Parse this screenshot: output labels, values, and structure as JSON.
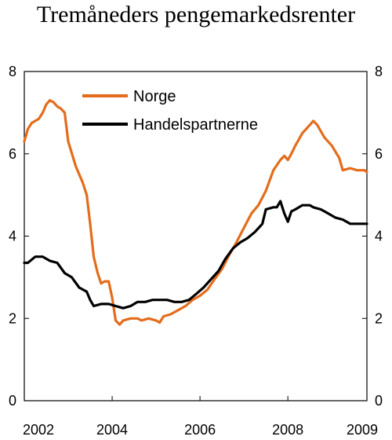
{
  "chart_data": {
    "type": "line",
    "title": "Tremåneders pengemarkedsrenter",
    "xlabel": "",
    "ylabel": "",
    "xlim": [
      2002.0,
      2009.8
    ],
    "ylim": [
      0,
      8
    ],
    "x_ticks": [
      {
        "value": 2002,
        "label": "2002"
      },
      {
        "value": 2004,
        "label": "2004"
      },
      {
        "value": 2006,
        "label": "2006"
      },
      {
        "value": 2008,
        "label": "2008"
      },
      {
        "value": 2009.8,
        "label": "2009"
      }
    ],
    "y_ticks_left": [
      0,
      2,
      4,
      6,
      8
    ],
    "y_ticks_right": [
      0,
      2,
      4,
      6,
      8
    ],
    "grid": false,
    "legend_position": "top-center",
    "series": [
      {
        "name": "Norge",
        "color": "#E46C1C",
        "points": [
          [
            2002.0,
            6.3
          ],
          [
            2002.08,
            6.6
          ],
          [
            2002.17,
            6.75
          ],
          [
            2002.33,
            6.85
          ],
          [
            2002.42,
            7.0
          ],
          [
            2002.5,
            7.2
          ],
          [
            2002.58,
            7.3
          ],
          [
            2002.67,
            7.25
          ],
          [
            2002.75,
            7.15
          ],
          [
            2002.83,
            7.1
          ],
          [
            2002.92,
            7.0
          ],
          [
            2003.0,
            6.3
          ],
          [
            2003.17,
            5.7
          ],
          [
            2003.33,
            5.3
          ],
          [
            2003.42,
            5.0
          ],
          [
            2003.5,
            4.3
          ],
          [
            2003.58,
            3.5
          ],
          [
            2003.67,
            3.1
          ],
          [
            2003.75,
            2.85
          ],
          [
            2003.83,
            2.9
          ],
          [
            2003.92,
            2.9
          ],
          [
            2004.0,
            2.5
          ],
          [
            2004.08,
            1.95
          ],
          [
            2004.17,
            1.85
          ],
          [
            2004.25,
            1.95
          ],
          [
            2004.42,
            2.0
          ],
          [
            2004.58,
            2.0
          ],
          [
            2004.67,
            1.95
          ],
          [
            2004.83,
            2.0
          ],
          [
            2005.0,
            1.95
          ],
          [
            2005.08,
            1.9
          ],
          [
            2005.17,
            2.05
          ],
          [
            2005.33,
            2.1
          ],
          [
            2005.5,
            2.2
          ],
          [
            2005.67,
            2.3
          ],
          [
            2005.83,
            2.45
          ],
          [
            2006.0,
            2.55
          ],
          [
            2006.17,
            2.7
          ],
          [
            2006.33,
            2.95
          ],
          [
            2006.5,
            3.2
          ],
          [
            2006.67,
            3.55
          ],
          [
            2006.83,
            3.85
          ],
          [
            2007.0,
            4.2
          ],
          [
            2007.17,
            4.55
          ],
          [
            2007.33,
            4.75
          ],
          [
            2007.5,
            5.1
          ],
          [
            2007.67,
            5.6
          ],
          [
            2007.83,
            5.85
          ],
          [
            2007.92,
            5.95
          ],
          [
            2008.0,
            5.85
          ],
          [
            2008.08,
            6.0
          ],
          [
            2008.17,
            6.2
          ],
          [
            2008.33,
            6.5
          ],
          [
            2008.5,
            6.7
          ],
          [
            2008.58,
            6.8
          ],
          [
            2008.67,
            6.7
          ],
          [
            2008.83,
            6.4
          ],
          [
            2009.0,
            6.2
          ],
          [
            2009.17,
            5.9
          ],
          [
            2009.25,
            5.6
          ],
          [
            2009.42,
            5.65
          ],
          [
            2009.58,
            5.6
          ],
          [
            2009.75,
            5.6
          ],
          [
            2009.8,
            5.55
          ]
        ]
      },
      {
        "name": "Handelspartnerne",
        "color": "#000000",
        "points": [
          [
            2002.0,
            3.35
          ],
          [
            2002.08,
            3.35
          ],
          [
            2002.25,
            3.5
          ],
          [
            2002.42,
            3.5
          ],
          [
            2002.58,
            3.4
          ],
          [
            2002.75,
            3.35
          ],
          [
            2002.92,
            3.1
          ],
          [
            2003.08,
            3.0
          ],
          [
            2003.25,
            2.75
          ],
          [
            2003.42,
            2.65
          ],
          [
            2003.5,
            2.45
          ],
          [
            2003.58,
            2.3
          ],
          [
            2003.75,
            2.35
          ],
          [
            2003.92,
            2.35
          ],
          [
            2004.08,
            2.3
          ],
          [
            2004.25,
            2.25
          ],
          [
            2004.42,
            2.3
          ],
          [
            2004.58,
            2.4
          ],
          [
            2004.75,
            2.4
          ],
          [
            2004.92,
            2.45
          ],
          [
            2005.08,
            2.45
          ],
          [
            2005.25,
            2.45
          ],
          [
            2005.42,
            2.4
          ],
          [
            2005.58,
            2.4
          ],
          [
            2005.75,
            2.45
          ],
          [
            2005.92,
            2.6
          ],
          [
            2006.08,
            2.75
          ],
          [
            2006.25,
            2.95
          ],
          [
            2006.42,
            3.15
          ],
          [
            2006.58,
            3.45
          ],
          [
            2006.75,
            3.7
          ],
          [
            2006.92,
            3.85
          ],
          [
            2007.08,
            3.95
          ],
          [
            2007.25,
            4.1
          ],
          [
            2007.42,
            4.3
          ],
          [
            2007.5,
            4.65
          ],
          [
            2007.67,
            4.7
          ],
          [
            2007.75,
            4.7
          ],
          [
            2007.83,
            4.85
          ],
          [
            2007.92,
            4.55
          ],
          [
            2008.0,
            4.35
          ],
          [
            2008.08,
            4.6
          ],
          [
            2008.17,
            4.65
          ],
          [
            2008.33,
            4.75
          ],
          [
            2008.5,
            4.75
          ],
          [
            2008.58,
            4.7
          ],
          [
            2008.75,
            4.65
          ],
          [
            2008.92,
            4.55
          ],
          [
            2009.08,
            4.45
          ],
          [
            2009.25,
            4.4
          ],
          [
            2009.42,
            4.3
          ],
          [
            2009.58,
            4.3
          ],
          [
            2009.75,
            4.3
          ],
          [
            2009.8,
            4.3
          ]
        ]
      }
    ]
  }
}
